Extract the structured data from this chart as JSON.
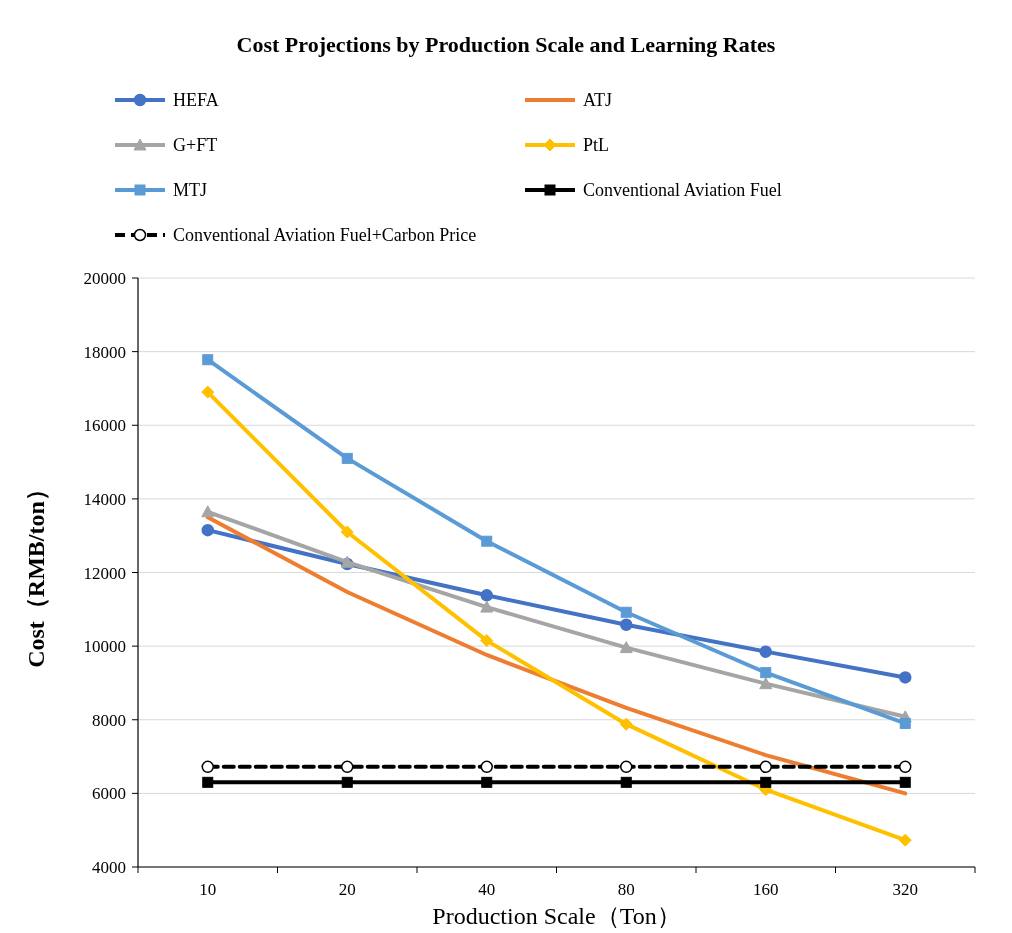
{
  "chart_data": {
    "type": "line",
    "title": "Cost Projections by Production Scale and Learning Rates",
    "xlabel": "Production Scale（Ton）",
    "ylabel": "Cost（RMB/ton）",
    "categories": [
      "10",
      "20",
      "40",
      "80",
      "160",
      "320"
    ],
    "ylim": [
      4000,
      20000
    ],
    "yticks": [
      4000,
      6000,
      8000,
      10000,
      12000,
      14000,
      16000,
      18000,
      20000
    ],
    "grid": "y",
    "legend": "top",
    "series": [
      {
        "name": "HEFA",
        "color": "#4472c4",
        "marker": "circle",
        "values": [
          13150,
          12230,
          11380,
          10580,
          9850,
          9150
        ]
      },
      {
        "name": "ATJ",
        "color": "#ed7d31",
        "marker": "none",
        "values": [
          13500,
          11470,
          9760,
          8320,
          7040,
          6000
        ]
      },
      {
        "name": "G+FT",
        "color": "#a5a5a5",
        "marker": "triangle",
        "values": [
          13650,
          12280,
          11060,
          9960,
          8980,
          8080
        ]
      },
      {
        "name": "PtL",
        "color": "#ffc000",
        "marker": "diamond",
        "values": [
          16900,
          13100,
          10150,
          7880,
          6100,
          4730
        ]
      },
      {
        "name": "MTJ",
        "color": "#5b9bd5",
        "marker": "square",
        "values": [
          17780,
          15100,
          12850,
          10920,
          9280,
          7900
        ]
      },
      {
        "name": "Conventional Aviation Fuel",
        "color": "#000000",
        "marker": "square",
        "values": [
          6300,
          6300,
          6300,
          6300,
          6300,
          6300
        ]
      },
      {
        "name": "Conventional Aviation Fuel+Carbon Price",
        "color": "#000000",
        "marker": "circle",
        "line_style": "dashed",
        "values": [
          6720,
          6720,
          6720,
          6720,
          6720,
          6720
        ]
      }
    ]
  }
}
